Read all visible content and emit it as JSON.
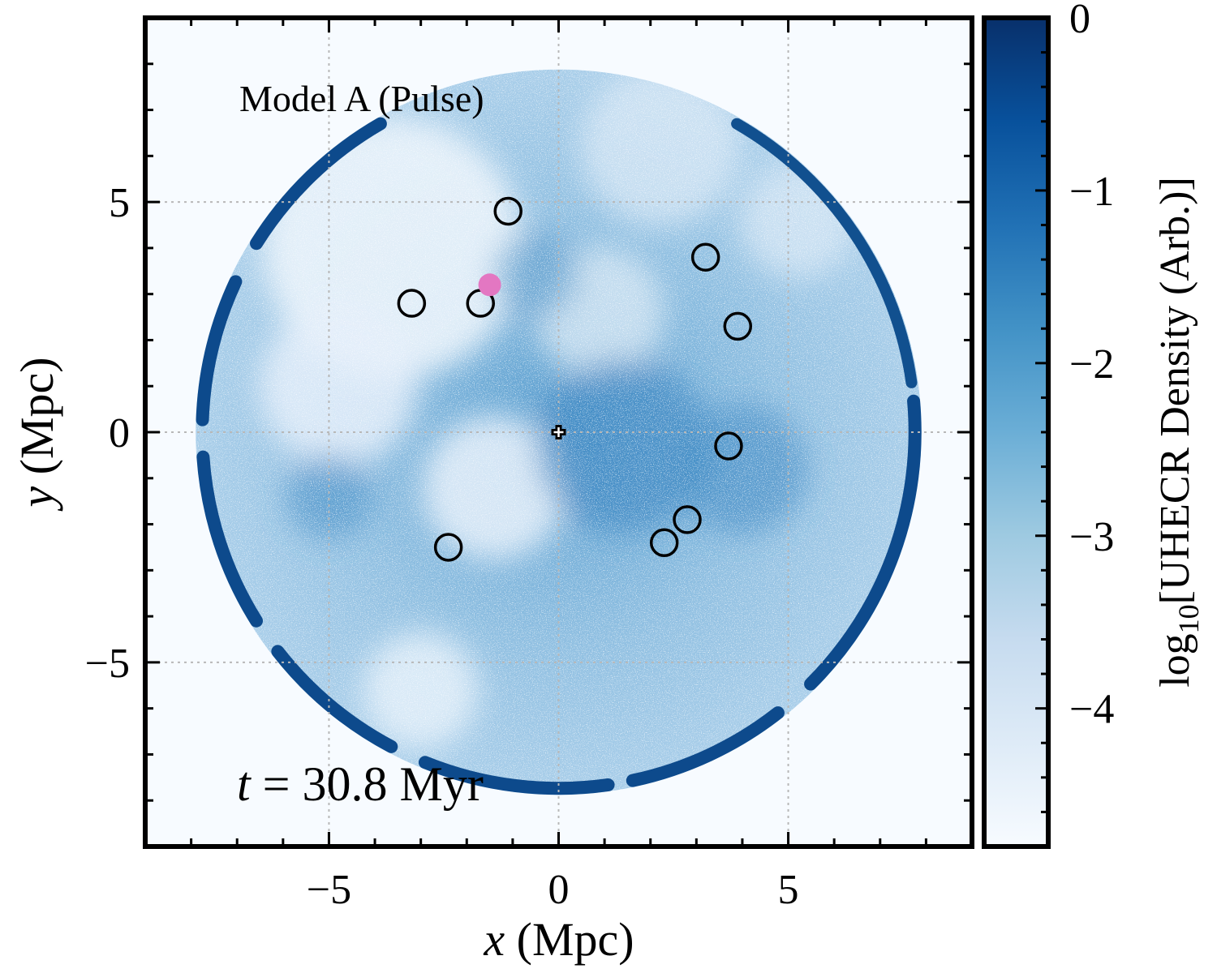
{
  "chart_data": {
    "type": "heatmap",
    "title": "",
    "model_label": "Model A (Pulse)",
    "time_label": "t = 30.8 Myr",
    "time_label_parts": {
      "var": "t",
      "rest": " = 30.8 Myr"
    },
    "xlabel": "x (Mpc)",
    "ylabel": "y (Mpc)",
    "xlabel_parts": {
      "var": "x",
      "unit": " (Mpc)"
    },
    "ylabel_parts": {
      "var": "y",
      "unit": " (Mpc)"
    },
    "xlim": [
      -9,
      9
    ],
    "ylim": [
      -9,
      9
    ],
    "x_ticks": [
      -5,
      0,
      5
    ],
    "y_ticks": [
      -5,
      0,
      5
    ],
    "x_tick_labels": [
      "−5",
      "0",
      "5"
    ],
    "y_tick_labels": [
      "−5",
      "0",
      "5"
    ],
    "grid": true,
    "colorbar": {
      "label": "log10[UHECR Density (Arb.)]",
      "label_parts": {
        "pre": "log",
        "sub": "10",
        "post": "[UHECR Density (Arb.)]"
      },
      "range": [
        -4.8,
        0
      ],
      "ticks": [
        0,
        -1,
        -2,
        -3,
        -4
      ],
      "tick_labels": [
        "0",
        "−1",
        "−2",
        "−3",
        "−4"
      ],
      "colormap": "Blues",
      "color_low": "#f7fbff",
      "color_high": "#08306b"
    },
    "shell": {
      "center": [
        0,
        0
      ],
      "radius": 7.9
    },
    "center_marker": {
      "x": 0,
      "y": 0,
      "symbol": "plus"
    },
    "highlight_point": {
      "x": -1.5,
      "y": 3.2,
      "color": "#e377c2"
    },
    "sources": [
      {
        "x": -1.1,
        "y": 4.8
      },
      {
        "x": -3.2,
        "y": 2.8
      },
      {
        "x": -1.7,
        "y": 2.8
      },
      {
        "x": 3.2,
        "y": 3.8
      },
      {
        "x": 3.9,
        "y": 2.3
      },
      {
        "x": 3.7,
        "y": -0.3
      },
      {
        "x": 2.8,
        "y": -1.9
      },
      {
        "x": 2.3,
        "y": -2.4
      },
      {
        "x": -2.4,
        "y": -2.5
      }
    ]
  }
}
